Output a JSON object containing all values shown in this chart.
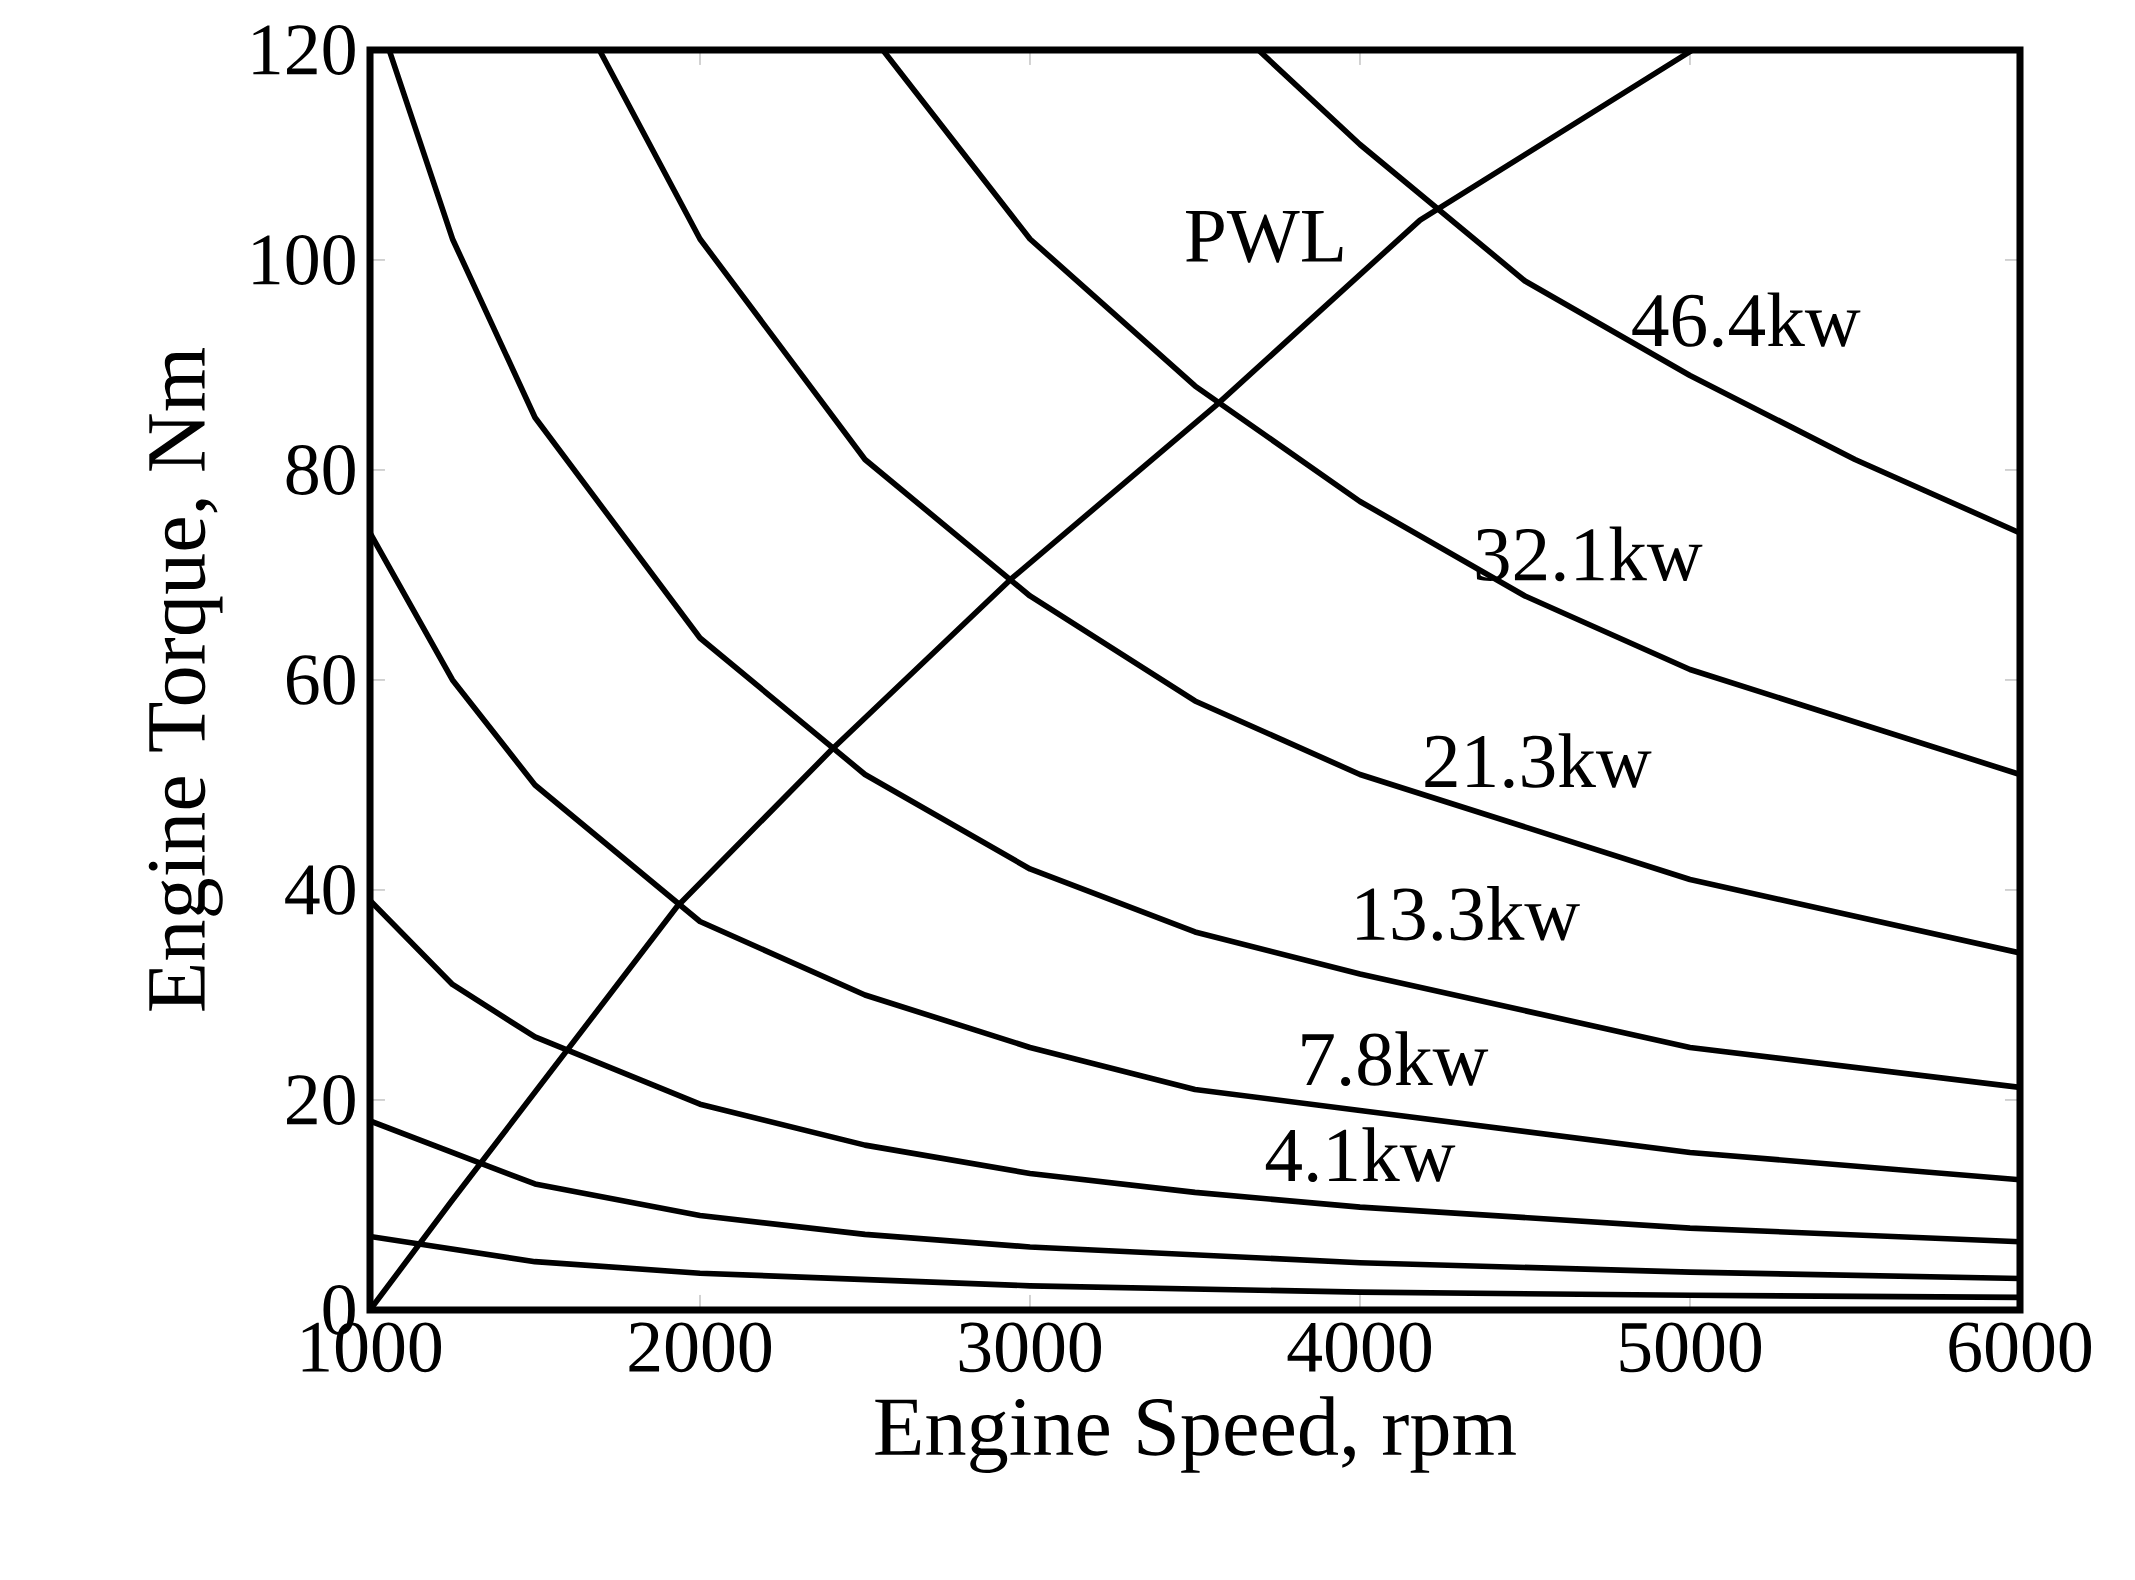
{
  "chart_data": {
    "type": "line",
    "xlabel": "Engine Speed, rpm",
    "ylabel": "Engine Torque, Nm",
    "xlim": [
      1000,
      6000
    ],
    "ylim": [
      0,
      120
    ],
    "xticks": [
      1000,
      2000,
      3000,
      4000,
      5000,
      6000
    ],
    "yticks": [
      0,
      20,
      40,
      60,
      80,
      100,
      120
    ],
    "grid": false,
    "legend": false,
    "marker": "none",
    "line_style": "solid",
    "series": [
      {
        "color": "#000000",
        "x": [
          1000,
          1500,
          2000,
          3000,
          4000,
          5000,
          6000
        ],
        "values": [
          7,
          4.6,
          3.5,
          2.3,
          1.7,
          1.4,
          1.2
        ]
      },
      {
        "color": "#000000",
        "x": [
          1000,
          1500,
          2000,
          2500,
          3000,
          4000,
          5000,
          6000
        ],
        "values": [
          18,
          12,
          9,
          7.2,
          6,
          4.5,
          3.6,
          3
        ]
      },
      {
        "name": "4.1kw",
        "color": "#000000",
        "x": [
          1000,
          1250,
          1500,
          2000,
          2500,
          3000,
          3500,
          4000,
          5000,
          6000
        ],
        "values": [
          39,
          31,
          26,
          19.6,
          15.7,
          13,
          11.2,
          9.8,
          7.8,
          6.5
        ]
      },
      {
        "name": "7.8kw",
        "color": "#000000",
        "x": [
          1000,
          1250,
          1500,
          2000,
          2500,
          3000,
          3500,
          4000,
          5000,
          6000
        ],
        "values": [
          74,
          60,
          50,
          37,
          30,
          25,
          21,
          19,
          15,
          12.4
        ]
      },
      {
        "name": "13.3kw",
        "color": "#000000",
        "x": [
          1058,
          1250,
          1500,
          2000,
          2500,
          3000,
          3500,
          4000,
          5000,
          6000
        ],
        "values": [
          120,
          102,
          85,
          64,
          51,
          42,
          36,
          32,
          25,
          21.2
        ]
      },
      {
        "name": "21.3kw",
        "color": "#000000",
        "x": [
          1695,
          2000,
          2500,
          3000,
          3500,
          4000,
          5000,
          6000
        ],
        "values": [
          120,
          102,
          81,
          68,
          58,
          51,
          41,
          34
        ]
      },
      {
        "name": "32.1kw",
        "color": "#000000",
        "x": [
          2554,
          3000,
          3500,
          4000,
          4500,
          5000,
          6000
        ],
        "values": [
          120,
          102,
          88,
          77,
          68,
          61,
          51
        ]
      },
      {
        "name": "46.4kw",
        "color": "#000000",
        "x": [
          3692,
          4000,
          4500,
          5000,
          5500,
          6000
        ],
        "values": [
          120,
          111,
          98,
          89,
          81,
          74
        ]
      },
      {
        "name": "PWL",
        "color": "#000000",
        "x": [
          1000,
          1248,
          1930,
          2397,
          2942,
          3562,
          4182,
          5008
        ],
        "values": [
          0,
          10.4,
          38.4,
          53.3,
          69.6,
          86.1,
          103.8,
          120
        ]
      }
    ]
  }
}
